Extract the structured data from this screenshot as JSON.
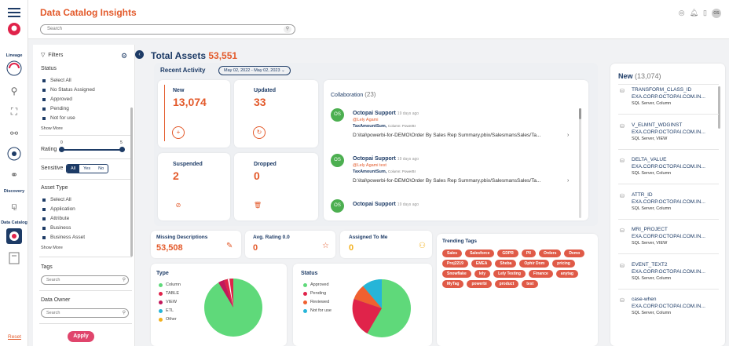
{
  "colors": {
    "accent": "#e35a2b",
    "navy": "#1d3b66",
    "tag": "#e05a47",
    "apply": "#e0456c"
  },
  "nav": {
    "lineage_label": "Lineage",
    "discovery_label": "Discovery",
    "data_catalog_label": "Data Catalog"
  },
  "header": {
    "title": "Data Catalog Insights",
    "search_placeholder": "Search",
    "avatar_initials": "OS"
  },
  "filters": {
    "title": "Filters",
    "status_label": "Status",
    "status_options": [
      "Select All",
      "No Status Assigned",
      "Approved",
      "Pending",
      "Not for use"
    ],
    "show_more": "Show More",
    "rating_label": "Rating",
    "rating_min": "0",
    "rating_max": "5",
    "sensitive_label": "Sensitive",
    "sensitive_options": [
      "All",
      "Yes",
      "No"
    ],
    "asset_type_label": "Asset Type",
    "asset_type_options": [
      "Select All",
      "Application",
      "Attribute",
      "Business",
      "Business Asset"
    ],
    "show_more_2": "Show More",
    "tags_label": "Tags",
    "tags_search_placeholder": "Search",
    "owner_label": "Data Owner",
    "owner_search_placeholder": "Search",
    "reset": "Reset",
    "apply": "Apply"
  },
  "total": {
    "label": "Total Assets",
    "value": "53,551"
  },
  "recent": {
    "title": "Recent Activity",
    "date_range": "May 02, 2022 - May 02, 2023",
    "new_label": "New",
    "new_value": "13,074",
    "updated_label": "Updated",
    "updated_value": "33",
    "suspended_label": "Suspended",
    "suspended_value": "2",
    "dropped_label": "Dropped",
    "dropped_value": "0"
  },
  "collaboration": {
    "title": "Collaboration",
    "count": "(23)",
    "posts": [
      {
        "initials": "OS",
        "name": "Octopai Support",
        "time": "19 days ago",
        "mention": "@Lely Agami",
        "target": "TaxAmountSum,",
        "target_type": "Column: PowerBI",
        "path": "D:\\ital\\powerbi-for-DEMO\\Order By Sales Rep Summary.pbix/SalesmansSales/Ta..."
      },
      {
        "initials": "OS",
        "name": "Octopai Support",
        "time": "19 days ago",
        "mention": "@Lely Agami test",
        "target": "TaxAmountSum,",
        "target_type": "Column: PowerBI",
        "path": "D:\\ital\\powerbi-for-DEMO\\Order By Sales Rep Summary.pbix/SalesmansSales/Ta..."
      },
      {
        "initials": "OS",
        "name": "Octopai Support",
        "time": "19 days ago",
        "mention": "",
        "target": "",
        "target_type": "",
        "path": ""
      }
    ]
  },
  "kpis": {
    "missing_label": "Missing Descriptions",
    "missing_value": "53,508",
    "rating_label": "Avg. Rating 0.0",
    "rating_value": "0",
    "assigned_label": "Assigned To Me",
    "assigned_value": "0"
  },
  "type_chart": {
    "title": "Type",
    "legend": [
      "Column",
      "TABLE",
      "VIEW",
      "ETL",
      "Other"
    ],
    "legend_colors": [
      "#5fd97a",
      "#e0234a",
      "#c2185b",
      "#26b5d8",
      "#f2b01e"
    ]
  },
  "status_chart": {
    "title": "Status",
    "legend": [
      "Approved",
      "Pending",
      "Reviewed",
      "Not for use"
    ],
    "legend_colors": [
      "#5fd97a",
      "#e0234a",
      "#f06030",
      "#26b5d8"
    ]
  },
  "trending": {
    "title": "Trending Tags",
    "tags": [
      "Sales",
      "Salesforce",
      "GDPR",
      "PII",
      "Orders",
      "Demo",
      "Proj2219",
      "EMEA",
      "Sheba",
      "Ophir Dom",
      "pricing",
      "Snowflake",
      "lely",
      "Lely Testing",
      "Finance",
      "anytag",
      "MyTag",
      "powerbi",
      "product",
      "test"
    ]
  },
  "right_panel": {
    "title": "New",
    "count": "(13,074)",
    "items": [
      {
        "name": "TRANSFORM_CLASS_ID",
        "server": "EXA.CORP.OCTOPAI.COM.IN...",
        "kind": "SQL Server, Column"
      },
      {
        "name": "V_ELMNT_WDGINST",
        "server": "EXA.CORP.OCTOPAI.COM.IN...",
        "kind": "SQL Server, VIEW"
      },
      {
        "name": "DELTA_VALUE",
        "server": "EXA.CORP.OCTOPAI.COM.IN...",
        "kind": "SQL Server, Column"
      },
      {
        "name": "ATTR_ID",
        "server": "EXA.CORP.OCTOPAI.COM.IN...",
        "kind": "SQL Server, Column"
      },
      {
        "name": "MRI_PROJECT",
        "server": "EXA.CORP.OCTOPAI.COM.IN...",
        "kind": "SQL Server, VIEW"
      },
      {
        "name": "EVENT_TEXT2",
        "server": "EXA.CORP.OCTOPAI.COM.IN...",
        "kind": "SQL Server, Column"
      },
      {
        "name": "case-when",
        "server": "EXA.CORP.OCTOPAI.COM.IN...",
        "kind": "SQL Server, Column"
      }
    ]
  }
}
